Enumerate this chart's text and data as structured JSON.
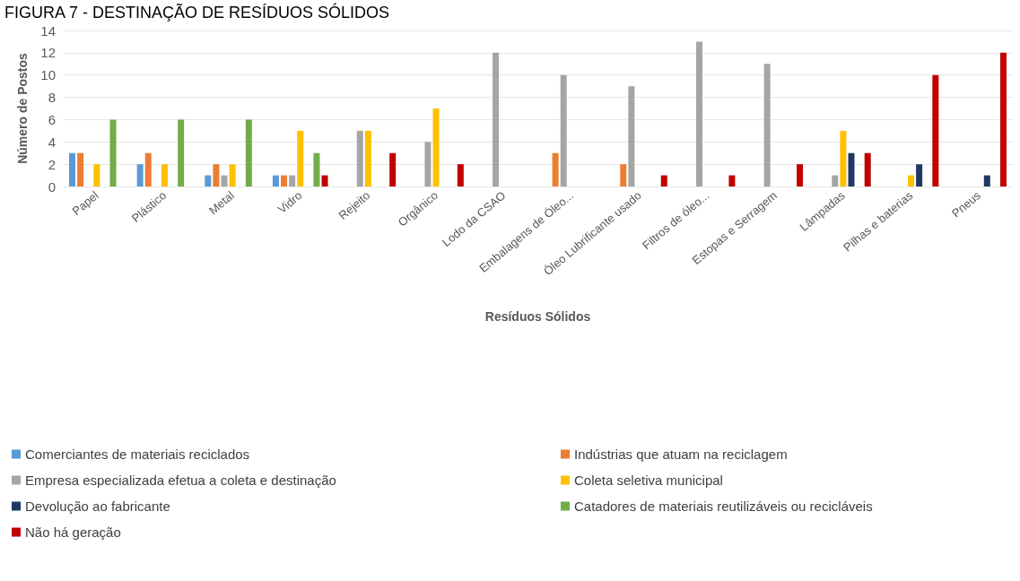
{
  "chart_data": {
    "type": "bar",
    "title": "FIGURA 7 - DESTINAÇÃO DE RESÍDUOS SÓLIDOS",
    "xlabel": "Resíduos Sólidos",
    "ylabel": "Número de Postos",
    "categories": [
      "Papel",
      "Plástico",
      "Metal",
      "Vidro",
      "Rejeito",
      "Orgânico",
      "Lodo da CSAO",
      "Embalagens de Óleo...",
      "Óleo Lubrificante usado",
      "Filtros de óleo...",
      "Estopas e Serragem",
      "Lâmpadas",
      "Pilhas e baterias",
      "Pneus"
    ],
    "series": [
      {
        "name": "Comerciantes de materiais reciclados",
        "color": "#5b9bd5",
        "values": [
          3,
          2,
          1,
          1,
          0,
          0,
          0,
          0,
          0,
          0,
          0,
          0,
          0,
          0
        ]
      },
      {
        "name": "Indústrias que atuam na reciclagem",
        "color": "#ed7d31",
        "values": [
          3,
          3,
          2,
          1,
          0,
          0,
          0,
          3,
          2,
          0,
          0,
          0,
          0,
          0
        ]
      },
      {
        "name": "Empresa especializada efetua a coleta e destinação",
        "color": "#a5a5a5",
        "values": [
          0,
          0,
          1,
          1,
          5,
          4,
          12,
          10,
          9,
          13,
          11,
          1,
          0,
          0
        ]
      },
      {
        "name": "Coleta seletiva municipal",
        "color": "#ffc000",
        "values": [
          2,
          2,
          2,
          5,
          5,
          7,
          0,
          0,
          0,
          0,
          0,
          5,
          1,
          0
        ]
      },
      {
        "name": "Devolução ao fabricante",
        "color": "#1f3864",
        "values": [
          0,
          0,
          0,
          0,
          0,
          0,
          0,
          0,
          0,
          0,
          0,
          3,
          2,
          1
        ]
      },
      {
        "name": "Catadores de materiais reutilizáveis ou recicláveis",
        "color": "#70ad47",
        "values": [
          6,
          6,
          6,
          3,
          0,
          0,
          0,
          0,
          0,
          0,
          0,
          0,
          0,
          0
        ]
      },
      {
        "name": "Não há geração",
        "color": "#c00000",
        "values": [
          0,
          0,
          0,
          1,
          3,
          2,
          0,
          0,
          1,
          1,
          2,
          3,
          10,
          12
        ]
      }
    ],
    "ylim": [
      0,
      14
    ],
    "yticks": [
      0,
      2,
      4,
      6,
      8,
      10,
      12,
      14
    ],
    "grid": "y",
    "legend": "bottom"
  }
}
